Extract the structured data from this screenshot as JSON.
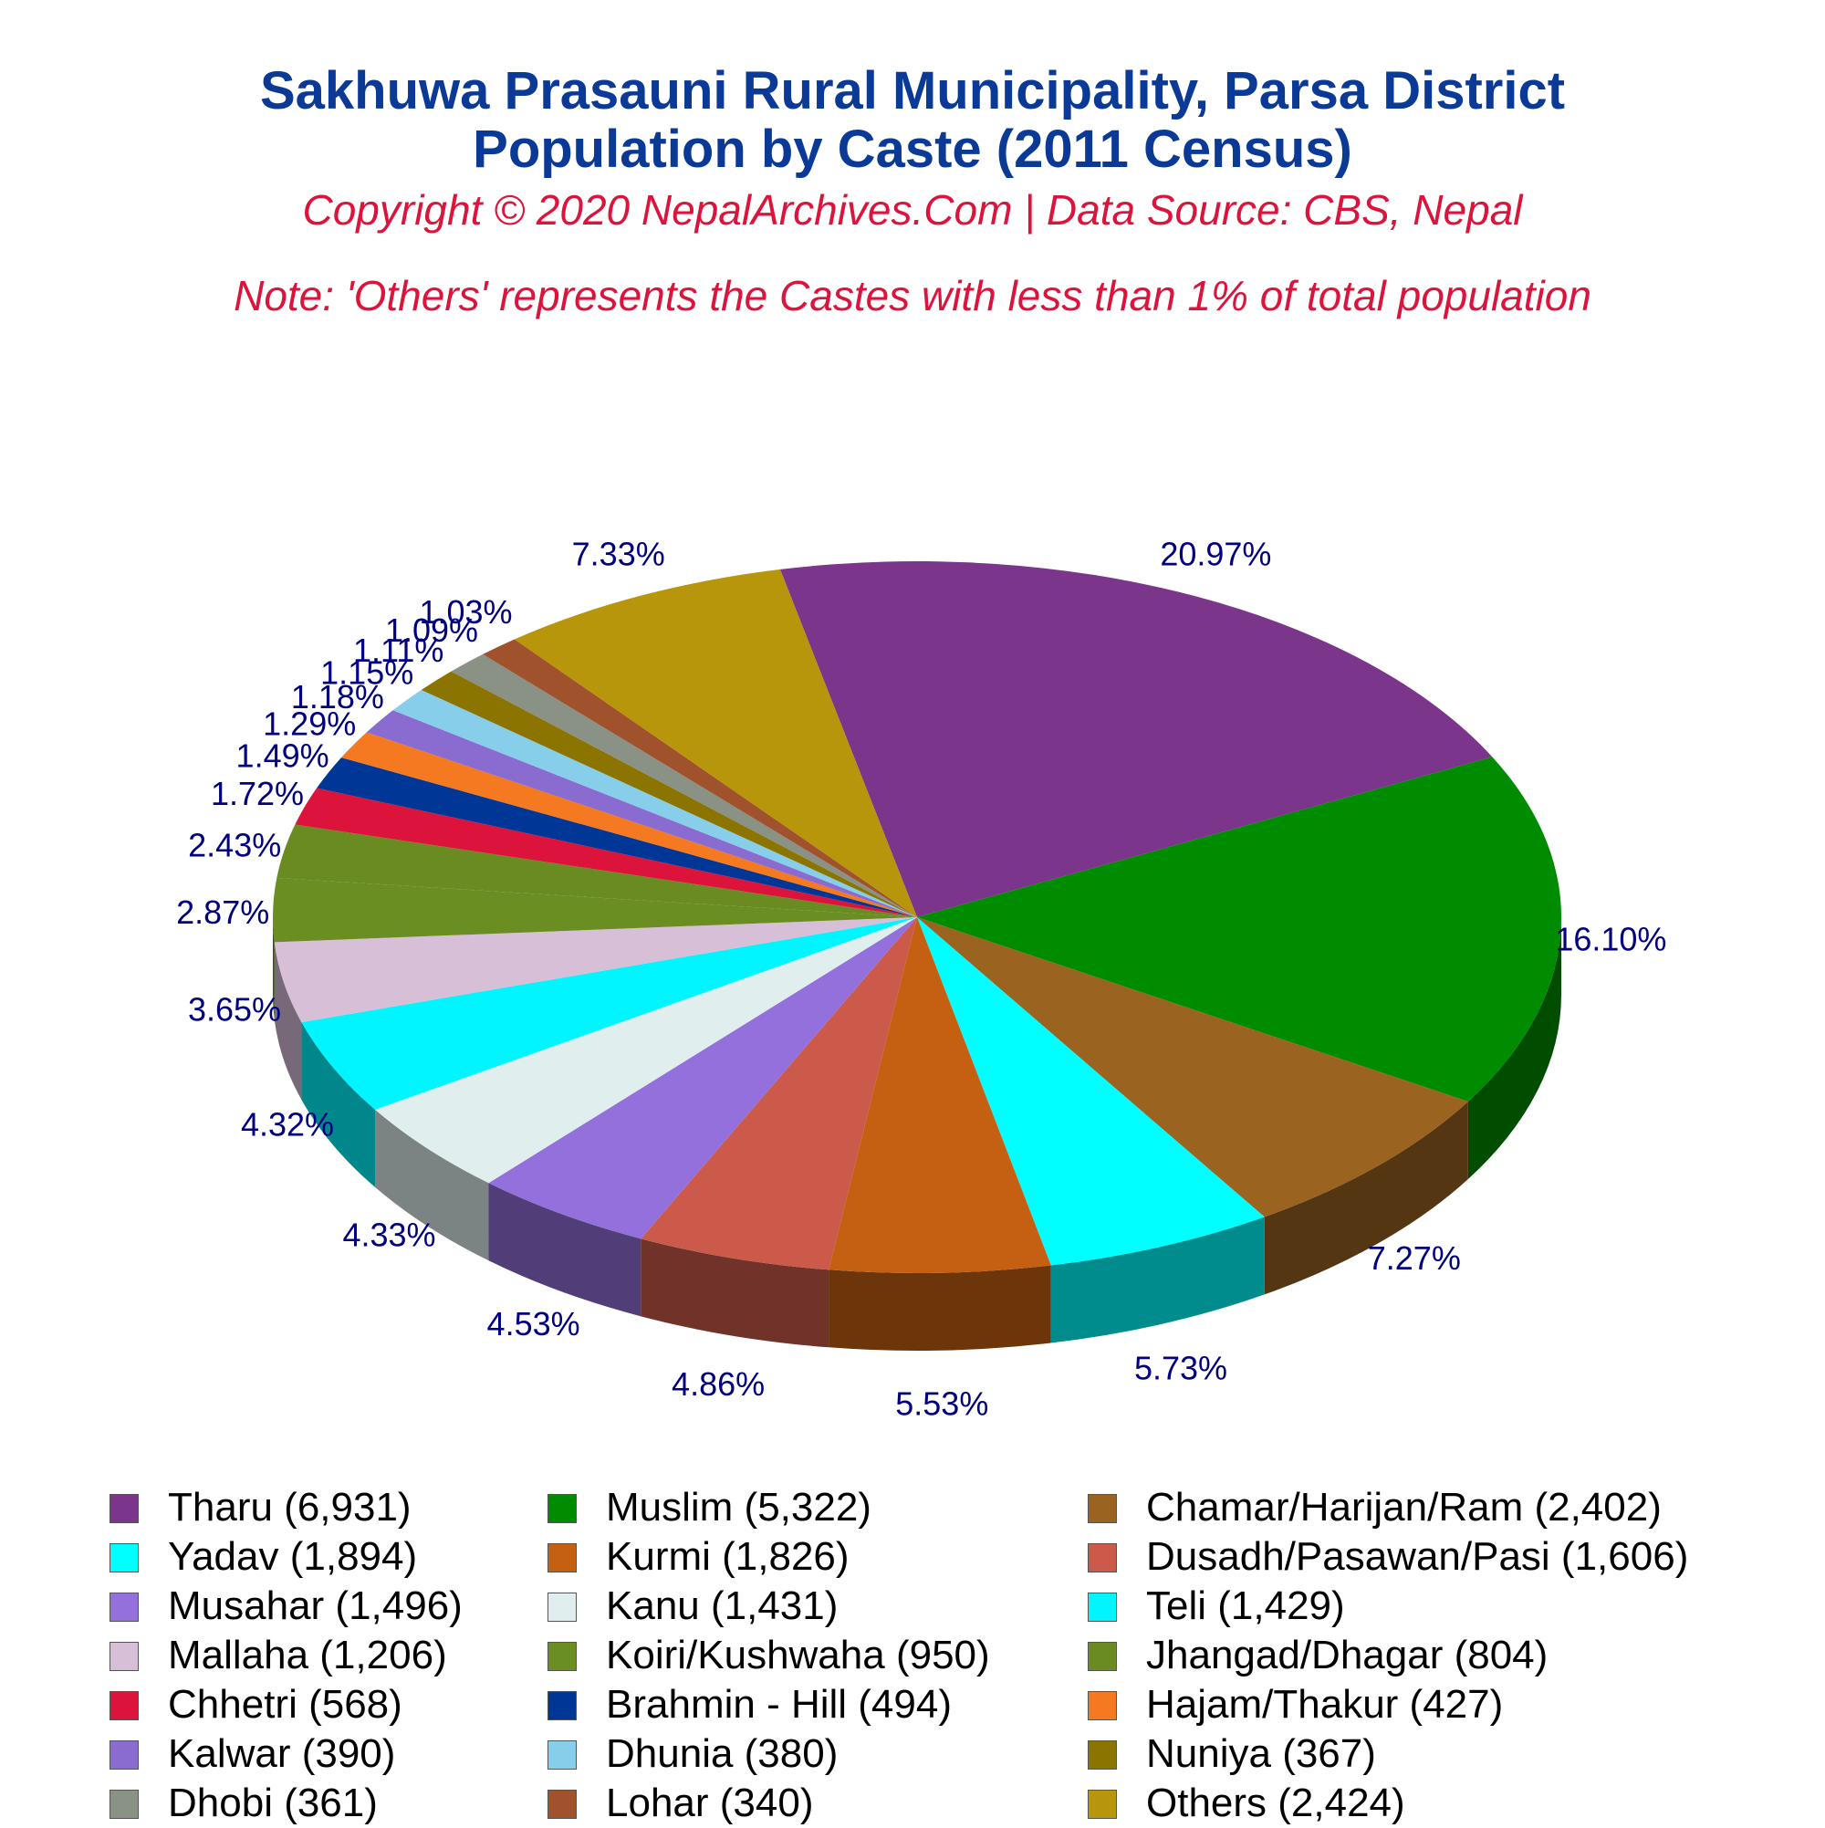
{
  "chart_data": {
    "type": "pie",
    "title": "Sakhuwa Prasauni Rural Municipality, Parsa District",
    "subtitle": "Population by Caste (2011 Census)",
    "copyright": "Copyright © 2020 NepalArchives.Com | Data Source: CBS, Nepal",
    "note": "Note: 'Others' represents the Castes with less than 1% of total population",
    "slices": [
      {
        "name": "Tharu",
        "value": 6931,
        "legend": "Tharu (6,931)",
        "pct_label": "20.97%",
        "color": "#7b368c"
      },
      {
        "name": "Muslim",
        "value": 5322,
        "legend": "Muslim (5,322)",
        "pct_label": "16.10%",
        "color": "#008c00"
      },
      {
        "name": "Chamar/Harijan/Ram",
        "value": 2402,
        "legend": "Chamar/Harijan/Ram (2,402)",
        "pct_label": "7.27%",
        "color": "#9a6320"
      },
      {
        "name": "Yadav",
        "value": 1894,
        "legend": "Yadav (1,894)",
        "pct_label": "5.73%",
        "color": "#00ffff"
      },
      {
        "name": "Kurmi",
        "value": 1826,
        "legend": "Kurmi (1,826)",
        "pct_label": "5.53%",
        "color": "#c56013"
      },
      {
        "name": "Dusadh/Pasawan/Pasi",
        "value": 1606,
        "legend": "Dusadh/Pasawan/Pasi (1,606)",
        "pct_label": "4.86%",
        "color": "#cc5a4a"
      },
      {
        "name": "Musahar",
        "value": 1496,
        "legend": "Musahar (1,496)",
        "pct_label": "4.53%",
        "color": "#9370db"
      },
      {
        "name": "Kanu",
        "value": 1431,
        "legend": "Kanu (1,431)",
        "pct_label": "4.33%",
        "color": "#e0eeee"
      },
      {
        "name": "Teli",
        "value": 1429,
        "legend": "Teli (1,429)",
        "pct_label": "4.32%",
        "color": "#00f5ff"
      },
      {
        "name": "Mallaha",
        "value": 1206,
        "legend": "Mallaha (1,206)",
        "pct_label": "3.65%",
        "color": "#d8bfd8"
      },
      {
        "name": "Koiri/Kushwaha",
        "value": 950,
        "legend": "Koiri/Kushwaha (950)",
        "pct_label": "2.87%",
        "color": "#6b8e23"
      },
      {
        "name": "Jhangad/Dhagar",
        "value": 804,
        "legend": "Jhangad/Dhagar (804)",
        "pct_label": "2.43%",
        "color": "#698b22"
      },
      {
        "name": "Chhetri",
        "value": 568,
        "legend": "Chhetri (568)",
        "pct_label": "1.72%",
        "color": "#dc143c"
      },
      {
        "name": "Brahmin - Hill",
        "value": 494,
        "legend": "Brahmin - Hill (494)",
        "pct_label": "1.49%",
        "color": "#003796"
      },
      {
        "name": "Hajam/Thakur",
        "value": 427,
        "legend": "Hajam/Thakur (427)",
        "pct_label": "1.29%",
        "color": "#f47920"
      },
      {
        "name": "Kalwar",
        "value": 390,
        "legend": "Kalwar (390)",
        "pct_label": "1.18%",
        "color": "#8a6bd0"
      },
      {
        "name": "Dhunia",
        "value": 380,
        "legend": "Dhunia (380)",
        "pct_label": "1.15%",
        "color": "#87ceeb"
      },
      {
        "name": "Nuniya",
        "value": 367,
        "legend": "Nuniya (367)",
        "pct_label": "1.11%",
        "color": "#8b7500"
      },
      {
        "name": "Dhobi",
        "value": 361,
        "legend": "Dhobi (361)",
        "pct_label": "1.09%",
        "color": "#8a9185"
      },
      {
        "name": "Lohar",
        "value": 340,
        "legend": "Lohar (340)",
        "pct_label": "1.03%",
        "color": "#a0522d"
      },
      {
        "name": "Others",
        "value": 2424,
        "legend": "Others (2,424)",
        "pct_label": "7.33%",
        "color": "#b8960c"
      }
    ],
    "legend_placement": "bottom"
  }
}
